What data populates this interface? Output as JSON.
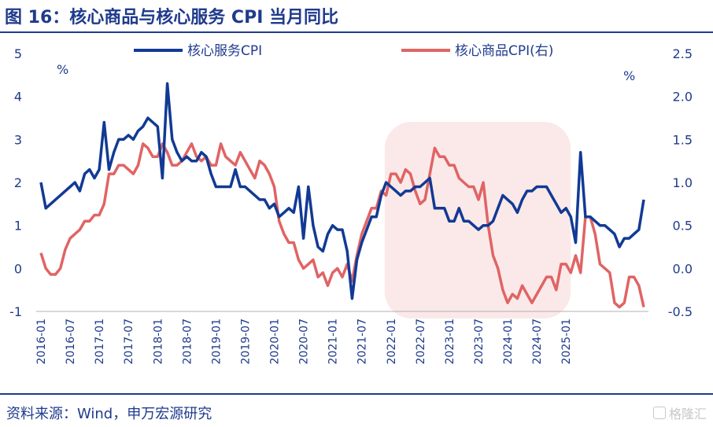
{
  "title": "图 16：核心商品与核心服务 CPI 当月同比",
  "source": "资料来源：Wind，申万宏源研究",
  "watermark": "格隆汇",
  "colors": {
    "accent": "#1f3b8c",
    "services": "#123a94",
    "goods": "#e06464",
    "highlight": "#fbe9e9"
  },
  "chart_data": {
    "type": "line",
    "left_axis": {
      "unit": "%",
      "ylim": [
        -1,
        5
      ],
      "ticks": [
        "-1",
        "0",
        "1",
        "2",
        "3",
        "4",
        "5"
      ]
    },
    "right_axis": {
      "unit": "%",
      "ylim": [
        -0.5,
        2.5
      ],
      "ticks": [
        "-0.5",
        "0.0",
        "0.5",
        "1.0",
        "1.5",
        "2.0",
        "2.5"
      ]
    },
    "x_ticks": [
      "2016-01",
      "2016-07",
      "2017-01",
      "2017-07",
      "2018-01",
      "2018-07",
      "2019-01",
      "2019-07",
      "2020-01",
      "2020-07",
      "2021-01",
      "2021-07",
      "2022-01",
      "2022-07",
      "2023-01",
      "2023-07",
      "2024-01",
      "2024-07",
      "2025-01"
    ],
    "highlight_range": [
      "2022-01",
      "2025-01"
    ],
    "legend_position": "top",
    "series": [
      {
        "name": "核心服务CPI",
        "axis": "left",
        "start": "2016-01",
        "values": [
          2.0,
          1.4,
          1.5,
          1.6,
          1.7,
          1.8,
          1.9,
          2.0,
          1.8,
          2.2,
          2.3,
          2.1,
          2.3,
          3.4,
          2.3,
          2.7,
          3.0,
          3.0,
          3.1,
          3.0,
          3.2,
          3.3,
          3.5,
          3.4,
          3.3,
          2.1,
          4.3,
          3.0,
          2.7,
          2.5,
          2.6,
          2.5,
          2.5,
          2.7,
          2.6,
          2.2,
          1.9,
          1.9,
          1.9,
          1.9,
          2.3,
          1.9,
          1.9,
          1.8,
          1.7,
          1.6,
          1.6,
          1.4,
          1.5,
          1.2,
          1.3,
          1.4,
          1.3,
          1.9,
          0.7,
          1.9,
          1.0,
          0.5,
          0.4,
          0.8,
          1.0,
          0.9,
          0.9,
          0.4,
          -0.7,
          0.2,
          0.6,
          0.9,
          1.2,
          1.2,
          1.7,
          2.0,
          1.9,
          1.8,
          1.7,
          1.8,
          1.8,
          1.9,
          1.9,
          2.0,
          2.1,
          1.4,
          1.4,
          1.4,
          1.1,
          1.1,
          1.4,
          1.1,
          1.1,
          1.0,
          0.9,
          1.0,
          1.0,
          1.1,
          1.4,
          1.7,
          1.6,
          1.5,
          1.3,
          1.6,
          1.8,
          1.8,
          1.9,
          1.9,
          1.9,
          1.7,
          1.5,
          1.3,
          1.4,
          1.2,
          0.6,
          2.7,
          1.2,
          1.2,
          1.1,
          1.0,
          1.0,
          0.9,
          0.8,
          0.5,
          0.7,
          0.7,
          0.8,
          0.9,
          1.6
        ]
      },
      {
        "name": "核心商品CPI(右)",
        "axis": "right",
        "start": "2016-01",
        "values": [
          0.18,
          0.0,
          -0.07,
          -0.07,
          0.0,
          0.22,
          0.35,
          0.4,
          0.45,
          0.55,
          0.55,
          0.62,
          0.62,
          0.75,
          1.1,
          1.1,
          1.2,
          1.2,
          1.15,
          1.1,
          1.2,
          1.45,
          1.4,
          1.3,
          1.3,
          1.45,
          1.35,
          1.2,
          1.2,
          1.25,
          1.35,
          1.45,
          1.3,
          1.25,
          1.3,
          1.2,
          1.2,
          1.45,
          1.3,
          1.25,
          1.2,
          1.35,
          1.25,
          1.15,
          1.05,
          1.25,
          1.2,
          1.1,
          0.95,
          0.55,
          0.4,
          0.3,
          0.3,
          0.1,
          0.0,
          0.05,
          0.1,
          -0.1,
          -0.05,
          -0.2,
          -0.05,
          0.0,
          -0.1,
          0.05,
          -0.15,
          0.15,
          0.4,
          0.55,
          0.7,
          0.7,
          0.9,
          0.85,
          1.1,
          1.1,
          1.0,
          1.15,
          1.1,
          0.9,
          0.75,
          0.8,
          1.1,
          1.4,
          1.3,
          1.3,
          1.2,
          1.2,
          1.05,
          1.0,
          0.95,
          0.95,
          0.8,
          1.0,
          0.5,
          0.15,
          0.0,
          -0.25,
          -0.4,
          -0.3,
          -0.35,
          -0.2,
          -0.3,
          -0.4,
          -0.3,
          -0.2,
          -0.1,
          -0.1,
          -0.25,
          0.05,
          0.05,
          -0.05,
          0.15,
          -0.05,
          0.6,
          0.6,
          0.4,
          0.05,
          0.0,
          -0.05,
          -0.4,
          -0.45,
          -0.4,
          -0.1,
          -0.1,
          -0.2,
          -0.45
        ]
      }
    ]
  }
}
